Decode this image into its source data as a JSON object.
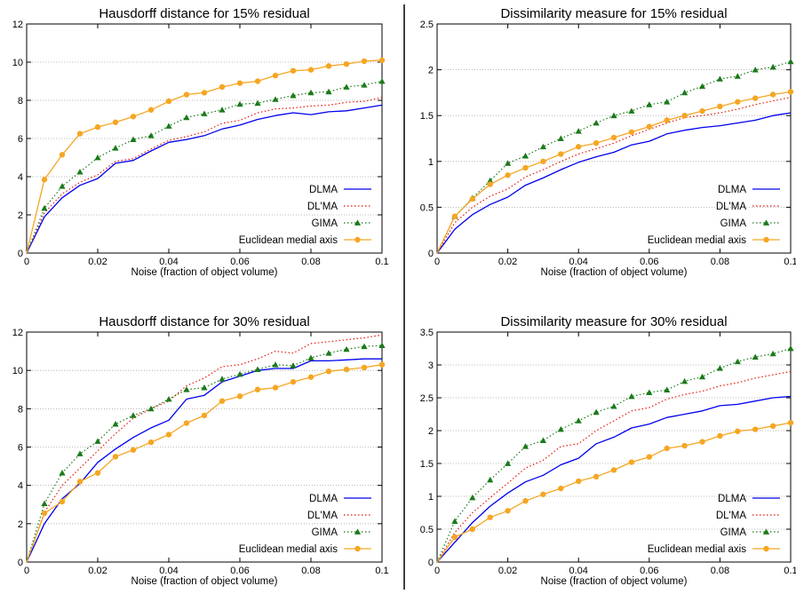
{
  "figure": {
    "divider_color": "#000000"
  },
  "series_styles": [
    {
      "color": "#0000ee",
      "dash": "",
      "marker": "none"
    },
    {
      "color": "#e8160c",
      "dash": "1.5,2.5",
      "marker": "none"
    },
    {
      "color": "#1a7a1a",
      "dash": "1.5,2.5",
      "marker": "triangle"
    },
    {
      "color": "#f5a623",
      "dash": "",
      "marker": "circle"
    }
  ],
  "chart_data": [
    {
      "type": "line",
      "title": "Hausdorff distance for 15% residual",
      "xlabel": "Noise (fraction of object volume)",
      "ylabel": "",
      "xlim": [
        0,
        0.1
      ],
      "ylim": [
        0,
        12
      ],
      "xticks": [
        0,
        0.02,
        0.04,
        0.06,
        0.08,
        0.1
      ],
      "xtick_labels": [
        "0",
        "0.02",
        "0.04",
        "0.06",
        "0.08",
        "0.1"
      ],
      "yticks": [
        0,
        2,
        4,
        6,
        8,
        10,
        12
      ],
      "ytick_labels": [
        "0",
        "2",
        "4",
        "6",
        "8",
        "10",
        "12"
      ],
      "grid": "horizontal dotted",
      "legend_position": "bottom-right",
      "x": [
        0,
        0.005,
        0.01,
        0.015,
        0.02,
        0.025,
        0.03,
        0.035,
        0.04,
        0.045,
        0.05,
        0.055,
        0.06,
        0.065,
        0.07,
        0.075,
        0.08,
        0.085,
        0.09,
        0.095,
        0.1
      ],
      "series": [
        {
          "name": "DLMA",
          "values": [
            0,
            1.9,
            2.9,
            3.55,
            3.9,
            4.7,
            4.85,
            5.35,
            5.8,
            5.95,
            6.15,
            6.5,
            6.7,
            7.0,
            7.2,
            7.35,
            7.25,
            7.4,
            7.45,
            7.6,
            7.75
          ]
        },
        {
          "name": "DL'MA",
          "values": [
            0,
            2.1,
            3.1,
            3.7,
            4.1,
            4.8,
            4.95,
            5.45,
            5.9,
            6.1,
            6.35,
            6.8,
            6.95,
            7.35,
            7.55,
            7.6,
            7.7,
            7.75,
            7.9,
            7.95,
            8.15
          ]
        },
        {
          "name": "GIMA",
          "values": [
            0,
            2.35,
            3.5,
            4.25,
            5.0,
            5.5,
            5.95,
            6.15,
            6.65,
            7.1,
            7.3,
            7.5,
            7.8,
            7.85,
            8.05,
            8.25,
            8.4,
            8.45,
            8.7,
            8.8,
            9.0
          ]
        },
        {
          "name": "Euclidean medial axis",
          "values": [
            0,
            3.85,
            5.15,
            6.25,
            6.6,
            6.85,
            7.15,
            7.5,
            7.95,
            8.3,
            8.4,
            8.7,
            8.9,
            9.0,
            9.3,
            9.55,
            9.6,
            9.8,
            9.9,
            10.05,
            10.1
          ]
        }
      ]
    },
    {
      "type": "line",
      "title": "Dissimilarity measure for 15% residual",
      "xlabel": "Noise (fraction of object volume)",
      "ylabel": "",
      "xlim": [
        0,
        0.1
      ],
      "ylim": [
        0,
        2.5
      ],
      "xticks": [
        0,
        0.02,
        0.04,
        0.06,
        0.08,
        0.1
      ],
      "xtick_labels": [
        "0",
        "0.02",
        "0.04",
        "0.06",
        "0.08",
        "0.1"
      ],
      "yticks": [
        0,
        0.5,
        1,
        1.5,
        2,
        2.5
      ],
      "ytick_labels": [
        "0",
        "0.5",
        "1",
        "1.5",
        "2",
        "2.5"
      ],
      "grid": "horizontal dotted",
      "legend_position": "bottom-right",
      "x": [
        0,
        0.005,
        0.01,
        0.015,
        0.02,
        0.025,
        0.03,
        0.035,
        0.04,
        0.045,
        0.05,
        0.055,
        0.06,
        0.065,
        0.07,
        0.075,
        0.08,
        0.085,
        0.09,
        0.095,
        0.1
      ],
      "series": [
        {
          "name": "DLMA",
          "values": [
            0,
            0.26,
            0.42,
            0.53,
            0.61,
            0.74,
            0.82,
            0.91,
            0.99,
            1.05,
            1.1,
            1.18,
            1.22,
            1.3,
            1.34,
            1.37,
            1.39,
            1.42,
            1.45,
            1.5,
            1.53
          ]
        },
        {
          "name": "DL'MA",
          "values": [
            0,
            0.33,
            0.5,
            0.62,
            0.7,
            0.83,
            0.91,
            1.0,
            1.08,
            1.14,
            1.2,
            1.28,
            1.35,
            1.42,
            1.48,
            1.5,
            1.53,
            1.57,
            1.62,
            1.66,
            1.7
          ]
        },
        {
          "name": "GIMA",
          "values": [
            0,
            0.4,
            0.6,
            0.79,
            0.98,
            1.06,
            1.16,
            1.25,
            1.33,
            1.42,
            1.5,
            1.55,
            1.62,
            1.65,
            1.75,
            1.82,
            1.9,
            1.93,
            2.0,
            2.03,
            2.09
          ]
        },
        {
          "name": "Euclidean medial axis",
          "values": [
            0,
            0.4,
            0.59,
            0.75,
            0.85,
            0.93,
            1.0,
            1.08,
            1.16,
            1.2,
            1.26,
            1.32,
            1.38,
            1.45,
            1.5,
            1.55,
            1.6,
            1.65,
            1.69,
            1.73,
            1.76
          ]
        }
      ]
    },
    {
      "type": "line",
      "title": "Hausdorff distance for 30% residual",
      "xlabel": "Noise (fraction of object volume)",
      "ylabel": "",
      "xlim": [
        0,
        0.1
      ],
      "ylim": [
        0,
        12
      ],
      "xticks": [
        0,
        0.02,
        0.04,
        0.06,
        0.08,
        0.1
      ],
      "xtick_labels": [
        "0",
        "0.02",
        "0.04",
        "0.06",
        "0.08",
        "0.1"
      ],
      "yticks": [
        0,
        2,
        4,
        6,
        8,
        10,
        12
      ],
      "ytick_labels": [
        "0",
        "2",
        "4",
        "6",
        "8",
        "10",
        "12"
      ],
      "grid": "horizontal dotted",
      "legend_position": "bottom-right",
      "x": [
        0,
        0.005,
        0.01,
        0.015,
        0.02,
        0.025,
        0.03,
        0.035,
        0.04,
        0.045,
        0.05,
        0.055,
        0.06,
        0.065,
        0.07,
        0.075,
        0.08,
        0.085,
        0.09,
        0.095,
        0.1
      ],
      "series": [
        {
          "name": "DLMA",
          "values": [
            0,
            2.0,
            3.3,
            4.1,
            5.2,
            5.9,
            6.5,
            7.0,
            7.4,
            8.5,
            8.7,
            9.4,
            9.7,
            10.0,
            10.1,
            10.1,
            10.5,
            10.5,
            10.55,
            10.6,
            10.6
          ]
        },
        {
          "name": "DL'MA",
          "values": [
            0,
            2.6,
            4.0,
            4.9,
            5.8,
            6.7,
            7.5,
            8.0,
            8.4,
            9.2,
            9.6,
            10.2,
            10.3,
            10.6,
            11.0,
            10.9,
            11.4,
            11.5,
            11.6,
            11.7,
            11.85
          ]
        },
        {
          "name": "GIMA",
          "values": [
            0,
            3.05,
            4.65,
            5.65,
            6.3,
            7.2,
            7.65,
            8.0,
            8.5,
            9.0,
            9.1,
            9.55,
            9.8,
            10.05,
            10.3,
            10.25,
            10.65,
            10.9,
            11.1,
            11.25,
            11.3
          ]
        },
        {
          "name": "Euclidean medial axis",
          "values": [
            0,
            2.55,
            3.15,
            4.2,
            4.65,
            5.5,
            5.85,
            6.25,
            6.65,
            7.25,
            7.65,
            8.4,
            8.65,
            9.0,
            9.1,
            9.4,
            9.65,
            9.95,
            10.05,
            10.15,
            10.3
          ]
        }
      ]
    },
    {
      "type": "line",
      "title": "Dissimilarity measure for 30% residual",
      "xlabel": "Noise (fraction of object volume)",
      "ylabel": "",
      "xlim": [
        0,
        0.1
      ],
      "ylim": [
        0,
        3.5
      ],
      "xticks": [
        0,
        0.02,
        0.04,
        0.06,
        0.08,
        0.1
      ],
      "xtick_labels": [
        "0",
        "0.02",
        "0.04",
        "0.06",
        "0.08",
        "0.1"
      ],
      "yticks": [
        0,
        0.5,
        1,
        1.5,
        2,
        2.5,
        3,
        3.5
      ],
      "ytick_labels": [
        "0",
        "0.5",
        "1",
        "1.5",
        "2",
        "2.5",
        "3",
        "3.5"
      ],
      "grid": "horizontal dotted",
      "legend_position": "bottom-right",
      "x": [
        0,
        0.005,
        0.01,
        0.015,
        0.02,
        0.025,
        0.03,
        0.035,
        0.04,
        0.045,
        0.05,
        0.055,
        0.06,
        0.065,
        0.07,
        0.075,
        0.08,
        0.085,
        0.09,
        0.095,
        0.1
      ],
      "series": [
        {
          "name": "DLMA",
          "values": [
            0,
            0.3,
            0.6,
            0.85,
            1.05,
            1.22,
            1.32,
            1.48,
            1.58,
            1.8,
            1.9,
            2.04,
            2.1,
            2.2,
            2.25,
            2.3,
            2.38,
            2.4,
            2.45,
            2.5,
            2.52
          ]
        },
        {
          "name": "DL'MA",
          "values": [
            0,
            0.45,
            0.75,
            0.98,
            1.2,
            1.43,
            1.55,
            1.76,
            1.8,
            2.0,
            2.15,
            2.3,
            2.35,
            2.48,
            2.55,
            2.6,
            2.68,
            2.73,
            2.8,
            2.85,
            2.9
          ]
        },
        {
          "name": "GIMA",
          "values": [
            0,
            0.62,
            0.98,
            1.25,
            1.5,
            1.76,
            1.85,
            2.02,
            2.15,
            2.28,
            2.37,
            2.52,
            2.58,
            2.62,
            2.75,
            2.82,
            2.95,
            3.05,
            3.12,
            3.17,
            3.25
          ]
        },
        {
          "name": "Euclidean medial axis",
          "values": [
            0,
            0.38,
            0.5,
            0.68,
            0.78,
            0.93,
            1.03,
            1.12,
            1.23,
            1.3,
            1.4,
            1.52,
            1.6,
            1.73,
            1.77,
            1.83,
            1.92,
            1.99,
            2.02,
            2.07,
            2.12
          ]
        }
      ]
    }
  ]
}
